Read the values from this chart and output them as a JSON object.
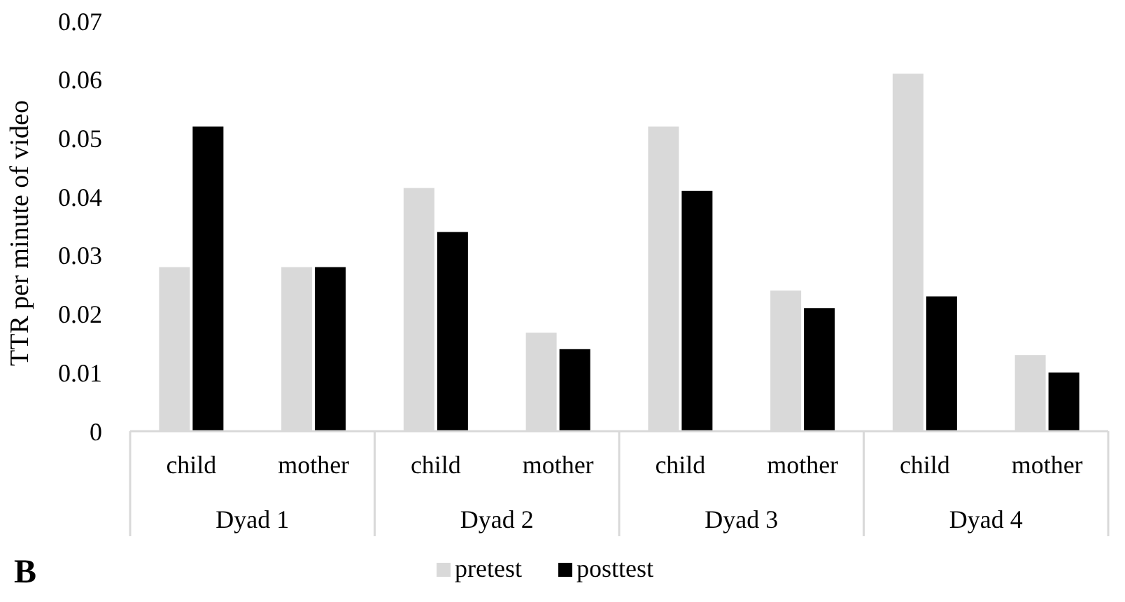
{
  "chart_data": {
    "type": "bar",
    "ylabel": "TTR per minute of video",
    "categories": [
      "child",
      "mother",
      "child",
      "mother",
      "child",
      "mother",
      "child",
      "mother"
    ],
    "series": [
      {
        "name": "pretest",
        "color": "#d9d9d9",
        "values": [
          0.028,
          0.028,
          0.0415,
          0.0168,
          0.052,
          0.024,
          0.061,
          0.013
        ]
      },
      {
        "name": "posttest",
        "color": "#000000",
        "values": [
          0.052,
          0.028,
          0.034,
          0.014,
          0.041,
          0.021,
          0.023,
          0.01
        ]
      }
    ],
    "ylim": [
      0,
      0.07
    ],
    "yticks": [
      0,
      0.01,
      0.02,
      0.03,
      0.04,
      0.05,
      0.06,
      0.07
    ],
    "annotations": [
      "Dyad 1",
      "Dyad 2",
      "Dyad 3",
      "Dyad 4",
      "B"
    ],
    "legend": "bottom",
    "grid": false
  }
}
